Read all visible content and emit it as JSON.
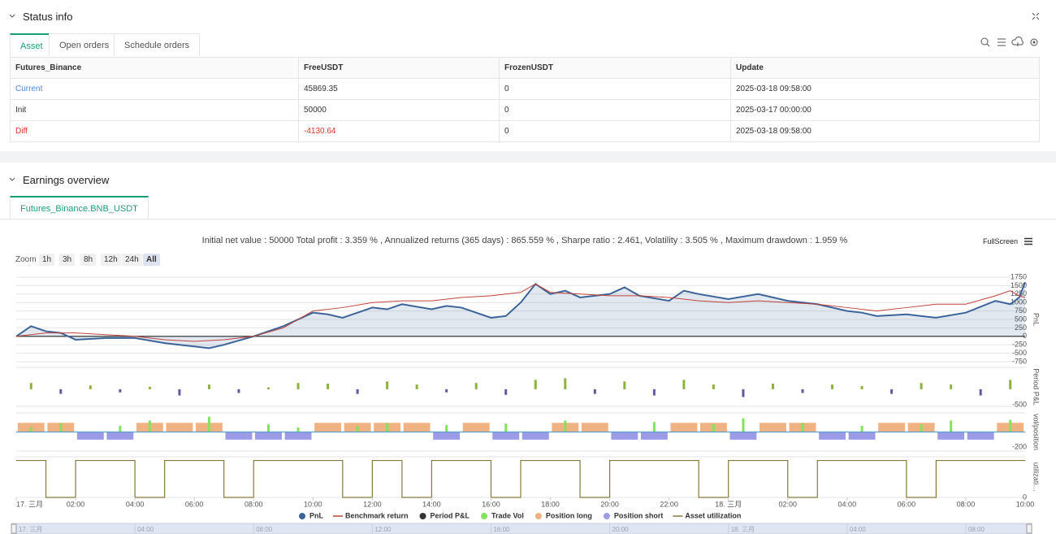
{
  "status": {
    "title": "Status info",
    "tabs": [
      "Asset",
      "Open orders",
      "Schedule orders"
    ],
    "table": {
      "headers": [
        "Futures_Binance",
        "FreeUSDT",
        "FrozenUSDT",
        "Update"
      ],
      "rows": [
        [
          "Current",
          "45869.35",
          "0",
          "2025-03-18 09:58:00"
        ],
        [
          "Init",
          "50000",
          "0",
          "2025-03-17 00:00:00"
        ],
        [
          "Diff",
          "-4130.64",
          "0",
          "2025-03-18 09:58:00"
        ]
      ]
    }
  },
  "earnings": {
    "title": "Earnings overview",
    "tab": "Futures_Binance.BNB_USDT",
    "summary": "Initial net value : 50000 Total profit : 3.359 % , Annualized returns (365 days) : 865.559 % , Sharpe ratio : 2.461, Volatility : 3.505 % , Maximum drawdown : 1.959 %",
    "fullscreen": "FullScreen",
    "zoom": {
      "label": "Zoom",
      "buttons": [
        "1h",
        "3h",
        "8h",
        "12h",
        "24h",
        "All"
      ],
      "active": 5
    },
    "chart": {
      "xlim": [
        0,
        34
      ],
      "xticks": [
        {
          "value": 0,
          "label": "17. 三月"
        },
        {
          "value": 2,
          "label": "02:00"
        },
        {
          "value": 4,
          "label": "04:00"
        },
        {
          "value": 6,
          "label": "06:00"
        },
        {
          "value": 8,
          "label": "08:00"
        },
        {
          "value": 10,
          "label": "10:00"
        },
        {
          "value": 12,
          "label": "12:00"
        },
        {
          "value": 14,
          "label": "14:00"
        },
        {
          "value": 16,
          "label": "16:00"
        },
        {
          "value": 18,
          "label": "18:00"
        },
        {
          "value": 20,
          "label": "20:00"
        },
        {
          "value": 22,
          "label": "22:00"
        },
        {
          "value": 24,
          "label": "18. 三月"
        },
        {
          "value": 26,
          "label": "02:00"
        },
        {
          "value": 28,
          "label": "04:00"
        },
        {
          "value": 30,
          "label": "06:00"
        },
        {
          "value": 32,
          "label": "08:00"
        },
        {
          "value": 34,
          "label": "10:00"
        }
      ],
      "navigator_ticks": [
        {
          "value": 0,
          "label": "17. 三月"
        },
        {
          "value": 4,
          "label": "04:00"
        },
        {
          "value": 8,
          "label": "08:00"
        },
        {
          "value": 12,
          "label": "12:00"
        },
        {
          "value": 16,
          "label": "16:00"
        },
        {
          "value": 20,
          "label": "20:00"
        },
        {
          "value": 24,
          "label": "18. 三月"
        },
        {
          "value": 28,
          "label": "04:00"
        },
        {
          "value": 32,
          "label": "08:00"
        }
      ],
      "panels": [
        {
          "axis_title": "PnL",
          "ylim": [
            -750,
            1750
          ],
          "yticks": [
            1750,
            1500,
            1250,
            1000,
            750,
            500,
            250,
            0,
            -250,
            -500,
            -750
          ],
          "grid": true
        },
        {
          "axis_title": "Period P&L",
          "ylim": [
            -550,
            700
          ],
          "yticks": [
            -500
          ],
          "grid": false
        },
        {
          "axis_title": "vol/position",
          "ylim": [
            -250,
            250
          ],
          "yticks": [
            -200
          ],
          "grid": false
        },
        {
          "axis_title": "utilizati…",
          "ylim": [
            0,
            110
          ],
          "yticks": [
            0
          ],
          "grid": false
        }
      ],
      "series": [
        {
          "name": "PnL",
          "color": "#3d6499",
          "type": "area",
          "panel": 0,
          "symbol": "circle",
          "x": [
            0,
            0.5,
            1,
            1.5,
            2,
            3,
            4,
            5,
            5.5,
            6,
            6.5,
            7,
            8,
            8.5,
            9,
            10,
            10.5,
            11,
            12,
            12.5,
            13,
            14,
            14.5,
            15,
            16,
            16.5,
            17,
            17.5,
            18,
            18.5,
            19,
            20,
            20.5,
            21,
            22,
            22.5,
            23,
            24,
            25,
            26,
            27,
            28,
            28.5,
            29,
            30,
            31,
            32,
            33,
            33.5,
            33.8,
            34
          ],
          "values": [
            0,
            300,
            150,
            100,
            -100,
            -50,
            -50,
            -200,
            -250,
            -300,
            -350,
            -250,
            0,
            150,
            300,
            700,
            650,
            550,
            850,
            800,
            950,
            800,
            900,
            850,
            550,
            600,
            1000,
            1550,
            1250,
            1350,
            1150,
            1250,
            1450,
            1200,
            1050,
            1350,
            1250,
            1100,
            1250,
            1050,
            950,
            750,
            700,
            600,
            650,
            550,
            700,
            1050,
            950,
            1150,
            1600
          ]
        },
        {
          "name": "Benchmark return",
          "color": "#c0443c",
          "type": "line",
          "panel": 0,
          "symbol": "line",
          "x": [
            0,
            1,
            2,
            3,
            4,
            5,
            6,
            7,
            8,
            9,
            10,
            11,
            12,
            13,
            14,
            15,
            16,
            17,
            17.5,
            18,
            19,
            20,
            21,
            22,
            23,
            24,
            25,
            26,
            27,
            28,
            29,
            30,
            31,
            32,
            33,
            33.5,
            33.8,
            34
          ],
          "values": [
            0,
            100,
            100,
            50,
            0,
            -100,
            -150,
            -100,
            0,
            250,
            750,
            850,
            1000,
            1050,
            1050,
            1150,
            1200,
            1300,
            1550,
            1300,
            1250,
            1200,
            1200,
            1150,
            1050,
            1000,
            1050,
            1000,
            950,
            850,
            750,
            850,
            950,
            950,
            1200,
            1350,
            1200,
            1150
          ]
        },
        {
          "name": "Period P&L",
          "color": "#333333",
          "up_color": "#8fb23f",
          "down_color": "#6b55a0",
          "type": "pnlbar",
          "panel": 1,
          "symbol": "circle",
          "x": [
            0.5,
            1.5,
            2.5,
            3.5,
            4.5,
            5.5,
            6.5,
            7.5,
            8.5,
            9.5,
            10.5,
            11.5,
            12.5,
            13.5,
            14.5,
            15.5,
            16.5,
            17.5,
            18.5,
            19.5,
            20.5,
            21.5,
            22.5,
            23.5,
            24.5,
            25.5,
            26.5,
            27.5,
            28.5,
            29.5,
            30.5,
            31.5,
            32.5,
            33.5
          ],
          "values": [
            200,
            -150,
            120,
            -100,
            80,
            -200,
            150,
            -120,
            60,
            200,
            180,
            -150,
            250,
            150,
            -100,
            200,
            -180,
            300,
            350,
            -150,
            250,
            -200,
            300,
            150,
            -250,
            180,
            -120,
            150,
            100,
            -150,
            200,
            150,
            -200,
            300
          ]
        },
        {
          "name": "Trade Vol",
          "color": "#84e35c",
          "type": "thinbar",
          "panel": 2,
          "symbol": "circle",
          "x": [
            0.5,
            1.5,
            2.5,
            3.5,
            4.5,
            5.5,
            6.5,
            7.5,
            8.5,
            9.5,
            10.5,
            11.5,
            12.5,
            13.5,
            14.5,
            15.5,
            16.5,
            17.5,
            18.5,
            19.5,
            20.5,
            21.5,
            22.5,
            23.5,
            24.5,
            25.5,
            26.5,
            27.5,
            28.5,
            29.5,
            30.5,
            31.5,
            32.5,
            33.5
          ],
          "values": [
            60,
            120,
            0,
            80,
            150,
            0,
            200,
            0,
            100,
            60,
            0,
            80,
            120,
            0,
            90,
            0,
            110,
            0,
            150,
            0,
            0,
            130,
            0,
            100,
            180,
            0,
            120,
            0,
            80,
            0,
            100,
            150,
            0,
            160
          ]
        },
        {
          "name": "Position long",
          "color": "#f0b283",
          "type": "block",
          "panel": 2,
          "symbol": "circle",
          "x": [
            0.5,
            1.5,
            2.5,
            3.5,
            4.5,
            5.5,
            6.5,
            7.5,
            8.5,
            9.5,
            10.5,
            11.5,
            12.5,
            13.5,
            14.5,
            15.5,
            16.5,
            17.5,
            18.5,
            19.5,
            20.5,
            21.5,
            22.5,
            23.5,
            24.5,
            25.5,
            26.5,
            27.5,
            28.5,
            29.5,
            30.5,
            31.5,
            32.5,
            33.5
          ],
          "values": [
            120,
            120,
            0,
            0,
            120,
            120,
            120,
            0,
            0,
            0,
            120,
            120,
            120,
            120,
            0,
            120,
            0,
            0,
            120,
            120,
            0,
            0,
            120,
            120,
            0,
            120,
            120,
            0,
            0,
            120,
            120,
            0,
            0,
            120
          ]
        },
        {
          "name": "Position short",
          "color": "#9b9be8",
          "type": "block",
          "panel": 2,
          "symbol": "circle",
          "x": [
            0.5,
            1.5,
            2.5,
            3.5,
            4.5,
            5.5,
            6.5,
            7.5,
            8.5,
            9.5,
            10.5,
            11.5,
            12.5,
            13.5,
            14.5,
            15.5,
            16.5,
            17.5,
            18.5,
            19.5,
            20.5,
            21.5,
            22.5,
            23.5,
            24.5,
            25.5,
            26.5,
            27.5,
            28.5,
            29.5,
            30.5,
            31.5,
            32.5,
            33.5
          ],
          "values": [
            0,
            0,
            -100,
            -100,
            0,
            0,
            0,
            -100,
            -100,
            -100,
            0,
            0,
            0,
            0,
            -100,
            0,
            -100,
            -100,
            0,
            0,
            -100,
            -100,
            0,
            0,
            -100,
            0,
            0,
            -100,
            -100,
            0,
            0,
            -100,
            -100,
            0
          ]
        },
        {
          "name": "Asset utilization",
          "color": "#857a3c",
          "type": "step",
          "panel": 3,
          "symbol": "line",
          "x": [
            0,
            1,
            2,
            3,
            4,
            5,
            6,
            7,
            8,
            9,
            10,
            11,
            12,
            13,
            14,
            15,
            16,
            17,
            18,
            19,
            20,
            21,
            22,
            23,
            24,
            25,
            26,
            27,
            28,
            29,
            30,
            31,
            32,
            33
          ],
          "values": [
            100,
            0,
            100,
            100,
            0,
            100,
            100,
            0,
            100,
            100,
            100,
            0,
            100,
            0,
            100,
            100,
            0,
            100,
            100,
            0,
            100,
            100,
            100,
            0,
            100,
            100,
            0,
            100,
            100,
            100,
            0,
            100,
            100,
            100
          ]
        }
      ]
    }
  }
}
